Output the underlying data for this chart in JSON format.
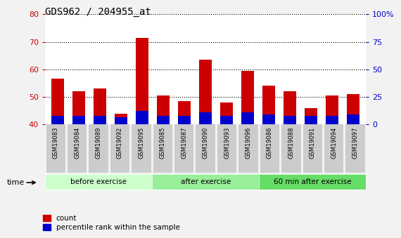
{
  "title": "GDS962 / 204955_at",
  "categories": [
    "GSM19083",
    "GSM19084",
    "GSM19089",
    "GSM19092",
    "GSM19095",
    "GSM19085",
    "GSM19087",
    "GSM19090",
    "GSM19093",
    "GSM19096",
    "GSM19086",
    "GSM19088",
    "GSM19091",
    "GSM19094",
    "GSM19097"
  ],
  "count_values": [
    56.5,
    52.0,
    53.0,
    44.0,
    71.5,
    50.5,
    48.5,
    63.5,
    48.0,
    59.5,
    54.0,
    52.0,
    46.0,
    50.5,
    51.0
  ],
  "percentile_values": [
    3.0,
    3.0,
    3.0,
    2.5,
    5.0,
    3.0,
    3.0,
    4.5,
    3.0,
    4.5,
    3.5,
    3.0,
    3.0,
    3.0,
    3.5
  ],
  "ymin": 40,
  "ymax": 80,
  "y2min": 0,
  "y2max": 100,
  "yticks": [
    40,
    50,
    60,
    70,
    80
  ],
  "y2ticks": [
    0,
    25,
    50,
    75,
    100
  ],
  "y2ticklabels": [
    "0",
    "25",
    "50",
    "75",
    "100%"
  ],
  "bar_color_red": "#cc0000",
  "bar_color_blue": "#0000cc",
  "bar_width": 0.6,
  "groups": [
    {
      "label": "before exercise",
      "start": 0,
      "end": 5
    },
    {
      "label": "after exercise",
      "start": 5,
      "end": 10
    },
    {
      "label": "60 min after exercise",
      "start": 10,
      "end": 15
    }
  ],
  "group_color_0": "#ccffcc",
  "group_color_1": "#99ee99",
  "group_color_2": "#66dd66",
  "tick_label_color": "#cc0000",
  "tick2_label_color": "#0000cc",
  "legend_count": "count",
  "legend_percentile": "percentile rank within the sample",
  "time_label": "time",
  "background_plot": "#ffffff",
  "background_xaxis": "#cccccc",
  "fig_bg": "#f2f2f2"
}
